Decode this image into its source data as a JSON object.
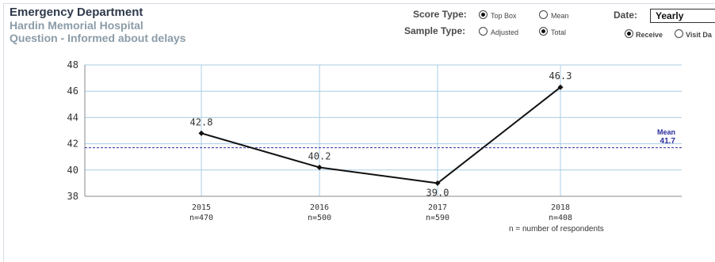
{
  "header": {
    "title": "Emergency Department",
    "hospital": "Hardin Memorial Hospital",
    "question": "Question - Informed about delays"
  },
  "controls": {
    "score_type": {
      "label": "Score Type:",
      "options": [
        {
          "label": "Top Box",
          "checked": true
        },
        {
          "label": "Mean",
          "checked": false
        }
      ]
    },
    "sample_type": {
      "label": "Sample Type:",
      "options": [
        {
          "label": "Adjusted",
          "checked": false
        },
        {
          "label": "Total",
          "checked": true
        }
      ]
    },
    "date": {
      "label": "Date:",
      "selected": "Yearly",
      "options": [
        {
          "label": "Receive",
          "checked": true
        },
        {
          "label": "Visit Da",
          "checked": false
        }
      ]
    }
  },
  "chart_data": {
    "type": "line",
    "categories": [
      "2015",
      "2016",
      "2017",
      "2018"
    ],
    "n_labels": [
      "n=470",
      "n=500",
      "n=590",
      "n=408"
    ],
    "values": [
      42.8,
      40.2,
      39.0,
      46.3
    ],
    "value_labels": [
      "42.8",
      "40.2",
      "39.0",
      "46.3"
    ],
    "ylim": [
      38,
      48
    ],
    "yticks": [
      38,
      40,
      42,
      44,
      46,
      48
    ],
    "grid": true,
    "mean": {
      "label": "Mean",
      "value": 41.7,
      "value_label": "41.7"
    },
    "footnote": "n = number of respondents",
    "colors": {
      "line": "#111111",
      "grid": "#a8cde6",
      "mean": "#2b2b9e"
    }
  }
}
